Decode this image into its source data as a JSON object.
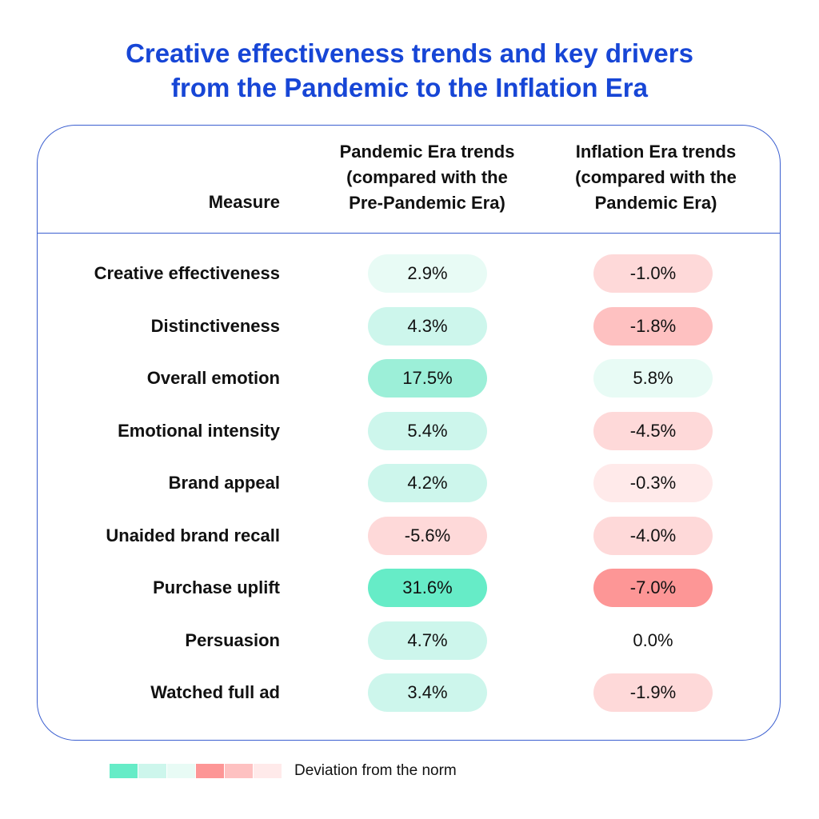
{
  "title": {
    "line1": "Creative effectiveness trends and key drivers",
    "line2": "from the Pandemic to the Inflation Era"
  },
  "table": {
    "headers": {
      "measure": "Measure",
      "pandemic": "Pandemic Era trends\n(compared with the\nPre-Pandemic Era)",
      "inflation": "Inflation Era trends\n(compared with the\nPandemic Era)"
    },
    "rows": [
      {
        "measure": "Creative effectiveness",
        "pandemic": "2.9%",
        "inflation": "-1.0%"
      },
      {
        "measure": "Distinctiveness",
        "pandemic": "4.3%",
        "inflation": "-1.8%"
      },
      {
        "measure": "Overall emotion",
        "pandemic": "17.5%",
        "inflation": "5.8%"
      },
      {
        "measure": "Emotional intensity",
        "pandemic": "5.4%",
        "inflation": "-4.5%"
      },
      {
        "measure": "Brand appeal",
        "pandemic": "4.2%",
        "inflation": "-0.3%"
      },
      {
        "measure": "Unaided brand recall",
        "pandemic": "-5.6%",
        "inflation": "-4.0%"
      },
      {
        "measure": "Purchase uplift",
        "pandemic": "31.6%",
        "inflation": "-7.0%"
      },
      {
        "measure": "Persuasion",
        "pandemic": "4.7%",
        "inflation": "0.0%"
      },
      {
        "measure": "Watched full ad",
        "pandemic": "3.4%",
        "inflation": "-1.9%"
      }
    ],
    "cell_colors": {
      "pandemic": [
        "#e8fbf5",
        "#cdf6ec",
        "#9cefd8",
        "#cdf6ec",
        "#cdf6ec",
        "#fed9d9",
        "#66ecc7",
        "#cdf6ec",
        "#cdf6ec"
      ],
      "inflation": [
        "#fed9d9",
        "#fec1c1",
        "#e8fbf5",
        "#fed9d9",
        "#ffeaea",
        "#fed9d9",
        "#fd9696",
        "transparent",
        "#fed9d9"
      ]
    }
  },
  "legend": {
    "label": "Deviation from the norm",
    "swatches": [
      "#66ecc7",
      "#cdf6ec",
      "#e8fbf5",
      "#fd9696",
      "#fec1c1",
      "#ffeaea"
    ]
  },
  "colors": {
    "title": "#1746d6",
    "border": "#3b5fd0"
  }
}
